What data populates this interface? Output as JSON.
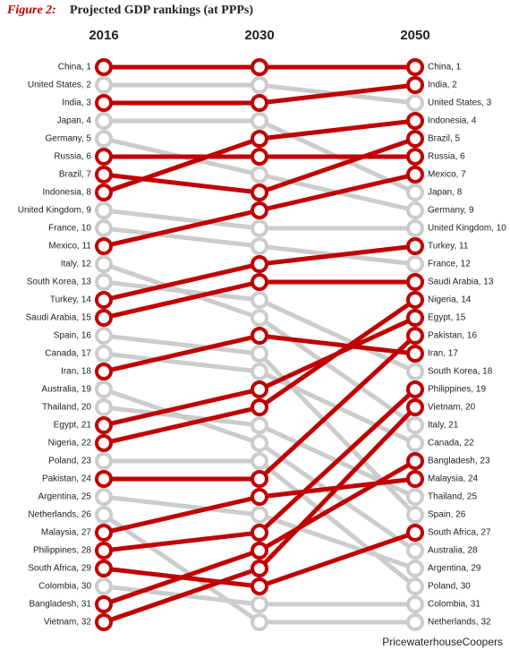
{
  "chart_data": {
    "type": "slope",
    "title_label": "Figure 2:",
    "title": "Projected GDP rankings (at PPPs)",
    "source": "PricewaterhouseCoopers",
    "categories": [
      "2016",
      "2030",
      "2050"
    ],
    "ylim": [
      32,
      1
    ],
    "series": [
      {
        "color": "#c00000",
        "values": [
          1,
          1,
          1
        ],
        "value_labels": [
          "China, 1",
          null,
          "China, 1"
        ]
      },
      {
        "color": "#cccccc",
        "values": [
          2,
          2,
          3
        ],
        "value_labels": [
          "United States, 2",
          null,
          "United States, 3"
        ]
      },
      {
        "color": "#c00000",
        "values": [
          3,
          3,
          2
        ],
        "value_labels": [
          "India, 3",
          null,
          "India, 2"
        ]
      },
      {
        "color": "#cccccc",
        "values": [
          4,
          4,
          8
        ],
        "value_labels": [
          "Japan, 4",
          null,
          "Japan, 8"
        ]
      },
      {
        "color": "#cccccc",
        "values": [
          5,
          7,
          9
        ],
        "value_labels": [
          "Germany, 5",
          null,
          "Germany, 9"
        ]
      },
      {
        "color": "#c00000",
        "values": [
          6,
          6,
          6
        ],
        "value_labels": [
          "Russia, 6",
          null,
          "Russia, 6"
        ]
      },
      {
        "color": "#c00000",
        "values": [
          7,
          8,
          5
        ],
        "value_labels": [
          "Brazil, 7",
          null,
          "Brazil, 5"
        ]
      },
      {
        "color": "#c00000",
        "values": [
          8,
          5,
          4
        ],
        "value_labels": [
          "Indonesia, 8",
          null,
          "Indonesia, 4"
        ]
      },
      {
        "color": "#cccccc",
        "values": [
          9,
          10,
          10
        ],
        "value_labels": [
          "United Kingdom, 9",
          null,
          "United Kingdom, 10"
        ]
      },
      {
        "color": "#cccccc",
        "values": [
          10,
          11,
          12
        ],
        "value_labels": [
          "France, 10",
          null,
          "France, 12"
        ]
      },
      {
        "color": "#c00000",
        "values": [
          11,
          9,
          7
        ],
        "value_labels": [
          "Mexico, 11",
          null,
          "Mexico, 7"
        ]
      },
      {
        "color": "#cccccc",
        "values": [
          12,
          15,
          21
        ],
        "value_labels": [
          "Italy, 12",
          null,
          "Italy, 21"
        ]
      },
      {
        "color": "#cccccc",
        "values": [
          13,
          14,
          18
        ],
        "value_labels": [
          "South Korea, 13",
          null,
          "South Korea, 18"
        ]
      },
      {
        "color": "#c00000",
        "values": [
          14,
          12,
          11
        ],
        "value_labels": [
          "Turkey, 14",
          null,
          "Turkey, 11"
        ]
      },
      {
        "color": "#c00000",
        "values": [
          15,
          13,
          13
        ],
        "value_labels": [
          "Saudi Arabia, 15",
          null,
          "Saudi Arabia, 13"
        ]
      },
      {
        "color": "#cccccc",
        "values": [
          16,
          17,
          26
        ],
        "value_labels": [
          "Spain, 16",
          null,
          "Spain, 26"
        ]
      },
      {
        "color": "#cccccc",
        "values": [
          17,
          18,
          22
        ],
        "value_labels": [
          "Canada, 17",
          null,
          "Canada, 22"
        ]
      },
      {
        "color": "#c00000",
        "values": [
          18,
          16,
          17
        ],
        "value_labels": [
          "Iran, 18",
          null,
          "Iran, 17"
        ]
      },
      {
        "color": "#cccccc",
        "values": [
          19,
          22,
          28
        ],
        "value_labels": [
          "Australia, 19",
          null,
          "Australia, 28"
        ]
      },
      {
        "color": "#cccccc",
        "values": [
          20,
          21,
          25
        ],
        "value_labels": [
          "Thailand, 20",
          null,
          "Thailand, 25"
        ]
      },
      {
        "color": "#c00000",
        "values": [
          21,
          19,
          15
        ],
        "value_labels": [
          "Egypt, 21",
          null,
          "Egypt, 15"
        ]
      },
      {
        "color": "#c00000",
        "values": [
          22,
          20,
          14
        ],
        "value_labels": [
          "Nigeria, 22",
          null,
          "Nigeria, 14"
        ]
      },
      {
        "color": "#cccccc",
        "values": [
          23,
          23,
          30
        ],
        "value_labels": [
          "Poland, 23",
          null,
          "Poland, 30"
        ]
      },
      {
        "color": "#c00000",
        "values": [
          24,
          24,
          16
        ],
        "value_labels": [
          "Pakistan, 24",
          null,
          "Pakistan, 16"
        ]
      },
      {
        "color": "#cccccc",
        "values": [
          25,
          26,
          29
        ],
        "value_labels": [
          "Argentina, 25",
          null,
          "Argentina, 29"
        ]
      },
      {
        "color": "#cccccc",
        "values": [
          26,
          32,
          32
        ],
        "value_labels": [
          "Netherlands, 26",
          null,
          "Netherlands, 32"
        ]
      },
      {
        "color": "#c00000",
        "values": [
          27,
          25,
          24
        ],
        "value_labels": [
          "Malaysia, 27",
          null,
          "Malaysia, 24"
        ]
      },
      {
        "color": "#c00000",
        "values": [
          28,
          27,
          19
        ],
        "value_labels": [
          "Philippines, 28",
          null,
          "Philippines, 19"
        ]
      },
      {
        "color": "#c00000",
        "values": [
          29,
          30,
          27
        ],
        "value_labels": [
          "South Africa, 29",
          null,
          "South Africa, 27"
        ]
      },
      {
        "color": "#cccccc",
        "values": [
          30,
          31,
          31
        ],
        "value_labels": [
          "Colombia, 30",
          null,
          "Colombia, 31"
        ]
      },
      {
        "color": "#c00000",
        "values": [
          31,
          28,
          23
        ],
        "value_labels": [
          "Bangladesh, 31",
          null,
          "Bangladesh, 23"
        ]
      },
      {
        "color": "#c00000",
        "values": [
          32,
          29,
          20
        ],
        "value_labels": [
          "Vietnam, 32",
          null,
          "Vietnam, 20"
        ]
      }
    ]
  }
}
